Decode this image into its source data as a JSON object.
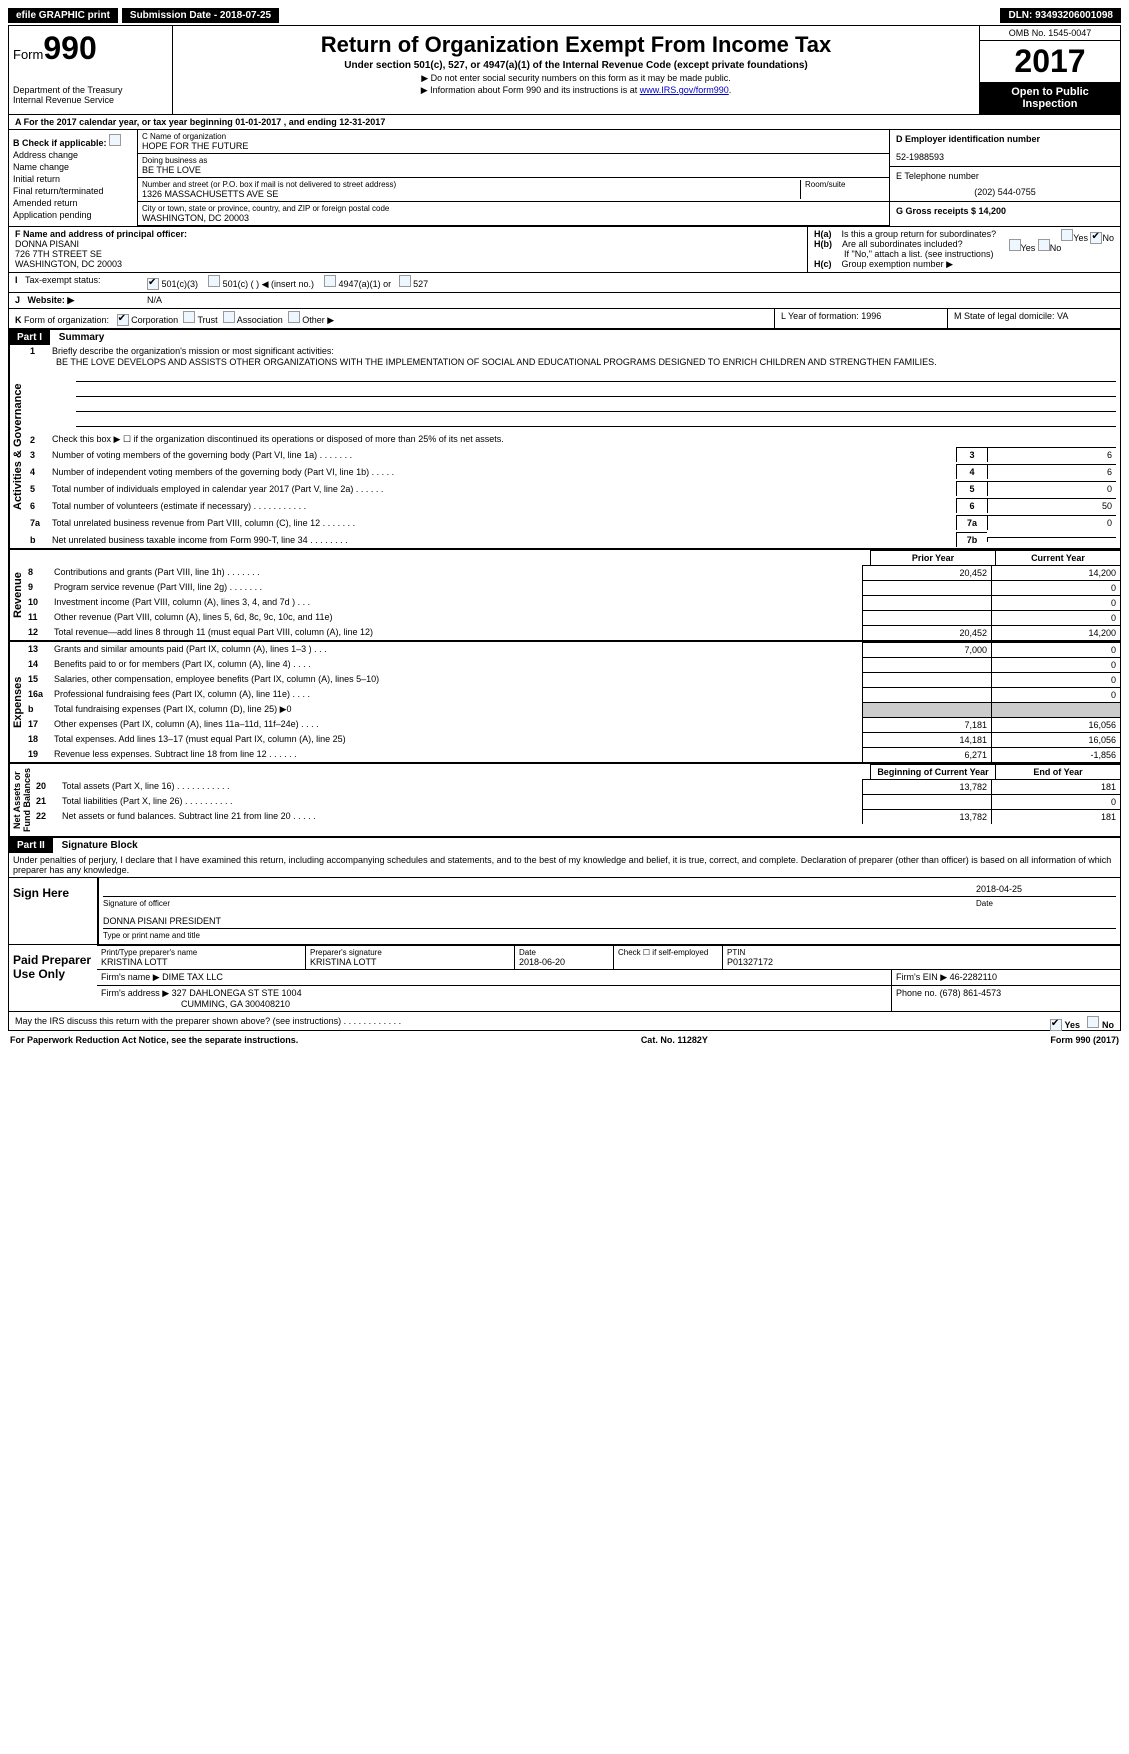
{
  "topbar": {
    "efile": "efile GRAPHIC print",
    "submission": "Submission Date - 2018-07-25",
    "dln": "DLN: 93493206001098"
  },
  "header": {
    "form_prefix": "Form",
    "form_number": "990",
    "dept1": "Department of the Treasury",
    "dept2": "Internal Revenue Service",
    "title": "Return of Organization Exempt From Income Tax",
    "sub": "Under section 501(c), 527, or 4947(a)(1) of the Internal Revenue Code (except private foundations)",
    "note1": "▶ Do not enter social security numbers on this form as it may be made public.",
    "note2_pre": "▶ Information about Form 990 and its instructions is at ",
    "note2_link": "www.IRS.gov/form990",
    "omb": "OMB No. 1545-0047",
    "year": "2017",
    "open1": "Open to Public",
    "open2": "Inspection"
  },
  "rowA": "A   For the 2017 calendar year, or tax year beginning 01-01-2017      , and ending 12-31-2017",
  "B": {
    "label": "Check if applicable:",
    "items": [
      "Address change",
      "Name change",
      "Initial return",
      "Final return/terminated",
      "Amended return",
      "Application pending"
    ]
  },
  "C": {
    "name_label": "C Name of organization",
    "name": "HOPE FOR THE FUTURE",
    "dba_label": "Doing business as",
    "dba": "BE THE LOVE",
    "addr_label": "Number and street (or P.O. box if mail is not delivered to street address)",
    "room_label": "Room/suite",
    "addr": "1326 MASSACHUSETTS AVE SE",
    "city_label": "City or town, state or province, country, and ZIP or foreign postal code",
    "city": "WASHINGTON, DC  20003"
  },
  "D": {
    "ein_label": "D Employer identification number",
    "ein": "52-1988593",
    "tel_label": "E Telephone number",
    "tel": "(202) 544-0755",
    "gross_label": "G Gross receipts $ 14,200"
  },
  "F": {
    "label": "F  Name and address of principal officer:",
    "name": "DONNA PISANI",
    "addr1": "726 7TH STREET SE",
    "addr2": "WASHINGTON, DC  20003"
  },
  "H": {
    "a": "Is this a group return for subordinates?",
    "b": "Are all subordinates included?",
    "b_note": "If \"No,\" attach a list. (see instructions)",
    "c": "Group exemption number ▶",
    "yes": "Yes",
    "no": "No"
  },
  "I": {
    "label": "Tax-exempt status:",
    "opts": [
      "501(c)(3)",
      "501(c) (  ) ◀ (insert no.)",
      "4947(a)(1) or",
      "527"
    ]
  },
  "J": {
    "label": "Website: ▶",
    "val": "N/A"
  },
  "K": {
    "label": "Form of organization:",
    "opts": [
      "Corporation",
      "Trust",
      "Association",
      "Other ▶"
    ]
  },
  "L": {
    "label": "L Year of formation: 1996"
  },
  "M": {
    "label": "M State of legal domicile: VA"
  },
  "part1": {
    "header": "Part I",
    "title": "Summary",
    "line1_label": "Briefly describe the organization's mission or most significant activities:",
    "line1_text": "BE THE LOVE DEVELOPS AND ASSISTS OTHER ORGANIZATIONS WITH THE IMPLEMENTATION OF SOCIAL AND EDUCATIONAL PROGRAMS DESIGNED TO ENRICH CHILDREN AND STRENGTHEN FAMILIES.",
    "line2": "Check this box ▶ ☐ if the organization discontinued its operations or disposed of more than 25% of its net assets.",
    "lines": [
      {
        "n": "3",
        "d": "Number of voting members of the governing body (Part VI, line 1a)   .    .    .    .    .    .    .",
        "b": "3",
        "v": "6"
      },
      {
        "n": "4",
        "d": "Number of independent voting members of the governing body (Part VI, line 1b)   .    .    .    .    .",
        "b": "4",
        "v": "6"
      },
      {
        "n": "5",
        "d": "Total number of individuals employed in calendar year 2017 (Part V, line 2a)   .    .    .    .    .    .",
        "b": "5",
        "v": "0"
      },
      {
        "n": "6",
        "d": "Total number of volunteers (estimate if necessary)   .    .    .    .    .    .    .    .    .    .    .",
        "b": "6",
        "v": "50"
      },
      {
        "n": "7a",
        "d": "Total unrelated business revenue from Part VIII, column (C), line 12   .    .    .    .    .    .    .",
        "b": "7a",
        "v": "0"
      },
      {
        "n": "b",
        "d": "Net unrelated business taxable income from Form 990-T, line 34   .    .    .    .    .    .    .    .",
        "b": "7b",
        "v": ""
      }
    ],
    "vert_gov": "Activities & Governance",
    "vert_rev": "Revenue",
    "vert_exp": "Expenses",
    "vert_net": "Net Assets or\nFund Balances",
    "prior": "Prior Year",
    "current": "Current Year",
    "boy": "Beginning of Current Year",
    "eoy": "End of Year",
    "revenue": [
      {
        "n": "8",
        "d": "Contributions and grants (Part VIII, line 1h)   .    .    .    .    .    .    .",
        "p": "20,452",
        "c": "14,200"
      },
      {
        "n": "9",
        "d": "Program service revenue (Part VIII, line 2g)   .    .    .    .    .    .    .",
        "p": "",
        "c": "0"
      },
      {
        "n": "10",
        "d": "Investment income (Part VIII, column (A), lines 3, 4, and 7d )   .    .    .",
        "p": "",
        "c": "0"
      },
      {
        "n": "11",
        "d": "Other revenue (Part VIII, column (A), lines 5, 6d, 8c, 9c, 10c, and 11e)",
        "p": "",
        "c": "0"
      },
      {
        "n": "12",
        "d": "Total revenue—add lines 8 through 11 (must equal Part VIII, column (A), line 12)",
        "p": "20,452",
        "c": "14,200"
      }
    ],
    "expenses": [
      {
        "n": "13",
        "d": "Grants and similar amounts paid (Part IX, column (A), lines 1–3 )   .    .    .",
        "p": "7,000",
        "c": "0"
      },
      {
        "n": "14",
        "d": "Benefits paid to or for members (Part IX, column (A), line 4)   .    .    .    .",
        "p": "",
        "c": "0"
      },
      {
        "n": "15",
        "d": "Salaries, other compensation, employee benefits (Part IX, column (A), lines 5–10)",
        "p": "",
        "c": "0"
      },
      {
        "n": "16a",
        "d": "Professional fundraising fees (Part IX, column (A), line 11e)   .    .    .    .",
        "p": "",
        "c": "0"
      },
      {
        "n": "b",
        "d": "Total fundraising expenses (Part IX, column (D), line 25) ▶0",
        "p": "shaded",
        "c": "shaded"
      },
      {
        "n": "17",
        "d": "Other expenses (Part IX, column (A), lines 11a–11d, 11f–24e)   .    .    .    .",
        "p": "7,181",
        "c": "16,056"
      },
      {
        "n": "18",
        "d": "Total expenses. Add lines 13–17 (must equal Part IX, column (A), line 25)",
        "p": "14,181",
        "c": "16,056"
      },
      {
        "n": "19",
        "d": "Revenue less expenses. Subtract line 18 from line 12   .    .    .    .    .    .",
        "p": "6,271",
        "c": "-1,856"
      }
    ],
    "net": [
      {
        "n": "20",
        "d": "Total assets (Part X, line 16)   .    .    .    .    .    .    .    .    .    .    .",
        "p": "13,782",
        "c": "181"
      },
      {
        "n": "21",
        "d": "Total liabilities (Part X, line 26)   .    .    .    .    .    .    .    .    .    .",
        "p": "",
        "c": "0"
      },
      {
        "n": "22",
        "d": "Net assets or fund balances. Subtract line 21 from line 20   .    .    .    .    .",
        "p": "13,782",
        "c": "181"
      }
    ]
  },
  "part2": {
    "header": "Part II",
    "title": "Signature Block",
    "declaration": "Under penalties of perjury, I declare that I have examined this return, including accompanying schedules and statements, and to the best of my knowledge and belief, it is true, correct, and complete. Declaration of preparer (other than officer) is based on all information of which preparer has any knowledge.",
    "sign_here": "Sign Here",
    "sig_officer": "Signature of officer",
    "sig_date": "2018-04-25",
    "date_label": "Date",
    "officer_name": "DONNA PISANI PRESIDENT",
    "type_name": "Type or print name and title",
    "paid": "Paid Preparer Use Only",
    "prep_name_label": "Print/Type preparer's name",
    "prep_name": "KRISTINA LOTT",
    "prep_sig_label": "Preparer's signature",
    "prep_sig": "KRISTINA LOTT",
    "prep_date_label": "Date",
    "prep_date": "2018-06-20",
    "self_emp": "Check ☐ if self-employed",
    "ptin_label": "PTIN",
    "ptin": "P01327172",
    "firm_name_label": "Firm's name    ▶",
    "firm_name": "DIME TAX LLC",
    "firm_ein_label": "Firm's EIN ▶",
    "firm_ein": "46-2282110",
    "firm_addr_label": "Firm's address ▶",
    "firm_addr1": "327 DAHLONEGA ST STE 1004",
    "firm_addr2": "CUMMING, GA  300408210",
    "phone_label": "Phone no.",
    "phone": "(678) 861-4573",
    "may_irs": "May the IRS discuss this return with the preparer shown above? (see instructions)   .    .    .    .    .    .    .    .    .    .    .    .",
    "yes": "Yes",
    "no": "No"
  },
  "footer": {
    "pra": "For Paperwork Reduction Act Notice, see the separate instructions.",
    "cat": "Cat. No. 11282Y",
    "form": "Form 990 (2017)"
  }
}
